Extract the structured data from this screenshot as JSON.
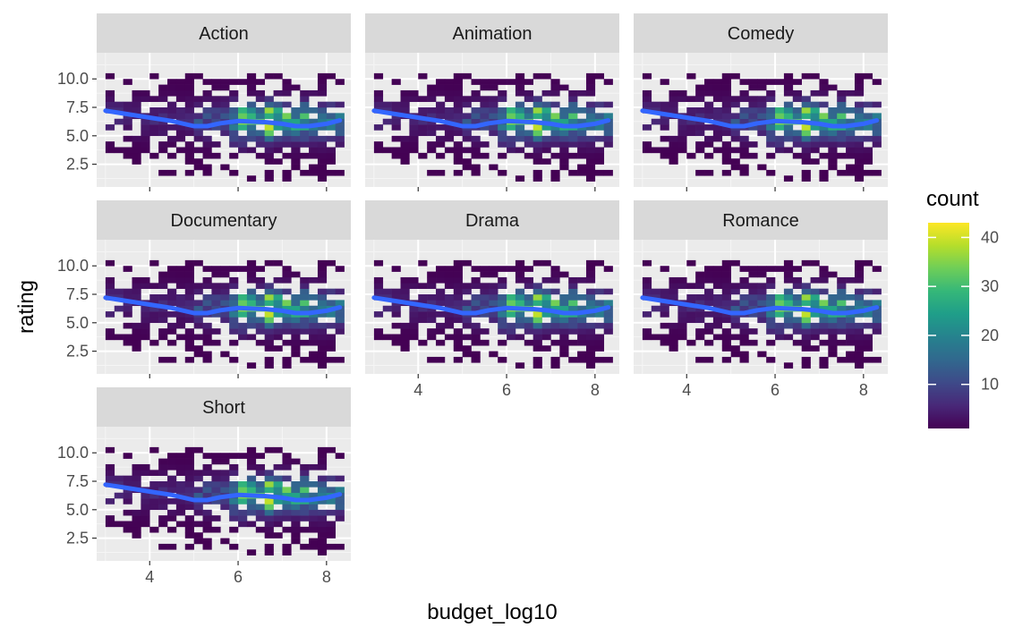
{
  "chart_data": {
    "type": "heatmap",
    "subtype": "faceted 2d-bin heatmap with smooth trend line",
    "xlabel": "budget_log10",
    "ylabel": "rating",
    "xlim": [
      2.8,
      8.55
    ],
    "ylim": [
      0.5,
      12.3
    ],
    "x_ticks": [
      4,
      6,
      8
    ],
    "x_tick_labels": [
      "4",
      "6",
      "8"
    ],
    "y_ticks": [
      2.5,
      5.0,
      7.5,
      10.0
    ],
    "y_tick_labels": [
      "2.5",
      "5.0",
      "7.5",
      "10.0"
    ],
    "grid": true,
    "bin_width": {
      "x": 0.2,
      "y": 0.5
    },
    "facets": [
      {
        "label": "Action"
      },
      {
        "label": "Animation"
      },
      {
        "label": "Comedy"
      },
      {
        "label": "Documentary"
      },
      {
        "label": "Drama"
      },
      {
        "label": "Romance"
      },
      {
        "label": "Short"
      }
    ],
    "smooth": {
      "color": "#3366ff",
      "x": [
        3.0,
        3.5,
        4.0,
        4.5,
        5.0,
        5.3,
        5.6,
        6.0,
        6.3,
        6.6,
        7.0,
        7.3,
        7.6,
        8.0,
        8.3
      ],
      "y": [
        7.2,
        6.9,
        6.6,
        6.3,
        5.85,
        5.85,
        6.1,
        6.3,
        6.25,
        6.2,
        6.05,
        5.85,
        5.85,
        6.05,
        6.35
      ]
    },
    "legend": {
      "title": "count",
      "position": "right",
      "range": [
        1,
        43
      ],
      "ticks": [
        10,
        20,
        30,
        40
      ],
      "tick_labels": [
        "10",
        "20",
        "30",
        "40"
      ],
      "colors": [
        "#440154",
        "#482878",
        "#3e4a89",
        "#31688e",
        "#26828e",
        "#1f9e89",
        "#35b779",
        "#6ece58",
        "#b5de2b",
        "#fde725"
      ]
    }
  }
}
